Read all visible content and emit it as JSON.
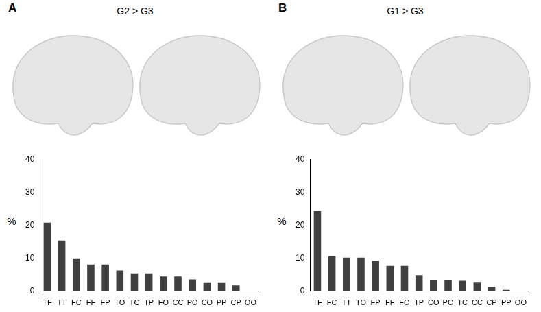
{
  "chart_data": [
    {
      "type": "bar",
      "title": "G2 > G3",
      "annotations": [
        "A"
      ],
      "y_label": "%",
      "categories": [
        "TF",
        "TT",
        "FC",
        "FF",
        "FP",
        "TO",
        "TC",
        "TP",
        "FO",
        "CC",
        "PO",
        "CO",
        "PP",
        "CP",
        "OO"
      ],
      "values": [
        20.8,
        15.4,
        10.0,
        8.1,
        8.1,
        6.3,
        5.4,
        5.4,
        4.5,
        4.5,
        3.6,
        2.7,
        2.7,
        1.8,
        0
      ],
      "color": "#404040",
      "ylim": [
        0,
        40
      ],
      "yticks": [
        0,
        10,
        20,
        30,
        40
      ],
      "grid": false
    },
    {
      "type": "bar",
      "title": "G1 > G3",
      "annotations": [
        "B"
      ],
      "y_label": "%",
      "categories": [
        "TF",
        "FC",
        "TT",
        "TO",
        "FP",
        "FF",
        "FO",
        "TP",
        "CO",
        "PO",
        "TC",
        "CC",
        "CP",
        "PP",
        "OO"
      ],
      "values": [
        24.3,
        10.6,
        10.2,
        10.2,
        9.2,
        7.7,
        7.7,
        4.9,
        3.5,
        3.5,
        3.2,
        2.8,
        1.4,
        0.4,
        0
      ],
      "color": "#404040",
      "ylim": [
        0,
        40
      ],
      "yticks": [
        0,
        10,
        20,
        30,
        40
      ],
      "grid": false
    }
  ]
}
